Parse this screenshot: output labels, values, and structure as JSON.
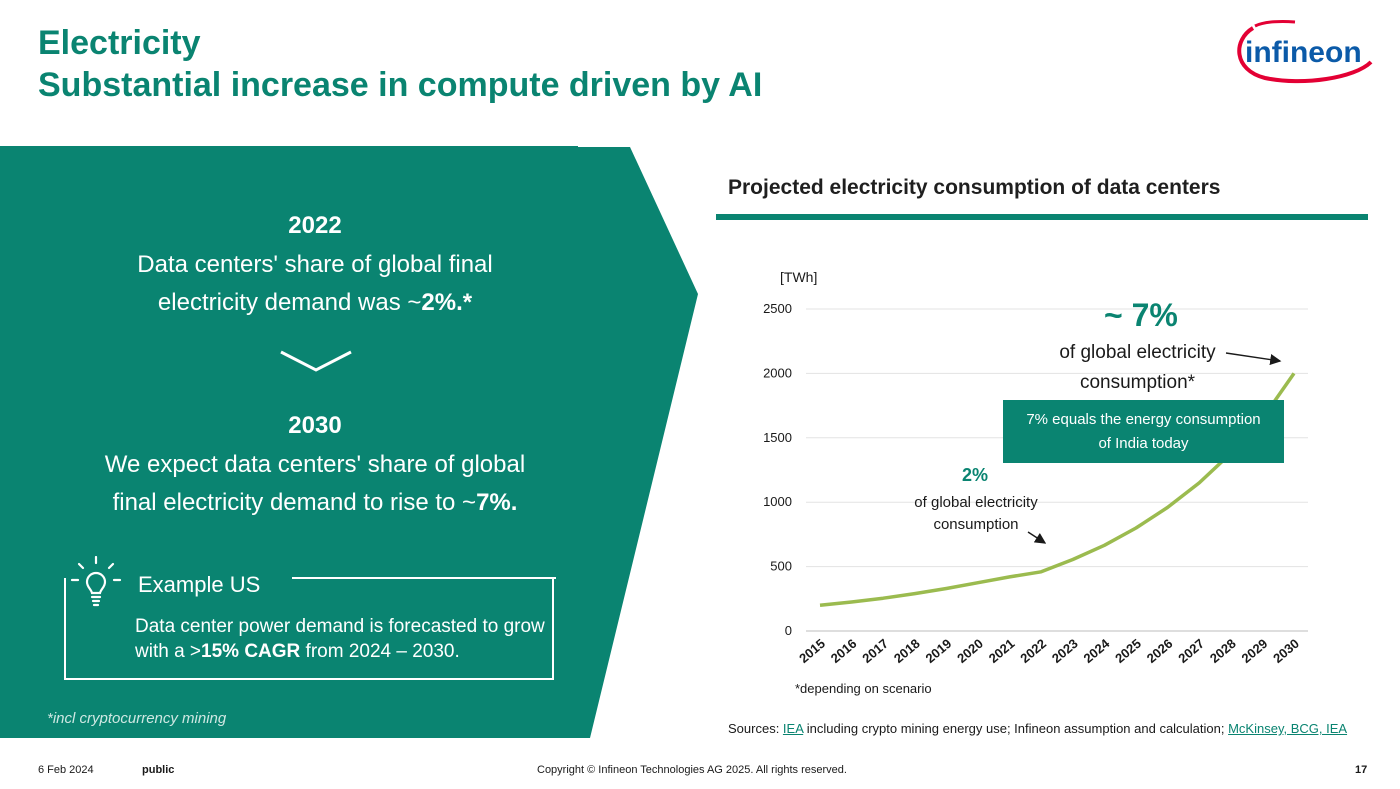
{
  "header": {
    "title_line1": "Electricity",
    "title_line2": "Substantial increase in compute driven by AI",
    "logo_text": "infineon"
  },
  "left_panel": {
    "year_2022": "2022",
    "statement_2022_line1": "Data centers' share of global final",
    "statement_2022_line2_prefix": "electricity demand was ~",
    "statement_2022_highlight": "2%.*",
    "year_2030": "2030",
    "statement_2030_line1": "We expect data centers' share of global",
    "statement_2030_line2_prefix": "final electricity demand to rise to ~",
    "statement_2030_highlight": "7%.",
    "example_label": "Example US",
    "example_text_prefix": "Data center power demand is forecasted to grow with a >",
    "example_text_highlight": "15% CAGR",
    "example_text_suffix": " from 2024 – 2030.",
    "footnote": "*incl cryptocurrency mining"
  },
  "colors": {
    "brand_teal": "#0a8471",
    "line_green": "#9bbb4f",
    "logo_red": "#e30034",
    "logo_blue": "#0b5aa8"
  },
  "chart_data": {
    "type": "line",
    "title": "Projected electricity consumption of data centers",
    "ylabel": "[TWh]",
    "ylim": [
      0,
      2500
    ],
    "yticks": [
      0,
      500,
      1000,
      1500,
      2000,
      2500
    ],
    "categories": [
      "2015",
      "2016",
      "2017",
      "2018",
      "2019",
      "2020",
      "2021",
      "2022",
      "2023",
      "2024",
      "2025",
      "2026",
      "2027",
      "2028",
      "2029",
      "2030"
    ],
    "values": [
      200,
      225,
      255,
      290,
      330,
      375,
      420,
      460,
      555,
      665,
      800,
      960,
      1150,
      1380,
      1650,
      2000
    ],
    "grid": true,
    "annotations": {
      "seven_big": "~ 7%",
      "seven_line1": "of global electricity",
      "seven_line2": "consumption*",
      "india_line1": "7% equals the energy consumption",
      "india_line2": "of India today",
      "two_big": "2%",
      "two_line1": "of global electricity",
      "two_line2": "consumption"
    },
    "note": "*depending on scenario"
  },
  "sources": {
    "prefix": "Sources: ",
    "link1": "IEA",
    "middle": " including crypto mining energy use; Infineon assumption and calculation; ",
    "link2": "McKinsey, BCG, IEA"
  },
  "footer": {
    "date": "6 Feb 2024",
    "classification": "public",
    "copyright": "Copyright © Infineon Technologies AG 2025. All rights reserved.",
    "page_number": "17"
  }
}
